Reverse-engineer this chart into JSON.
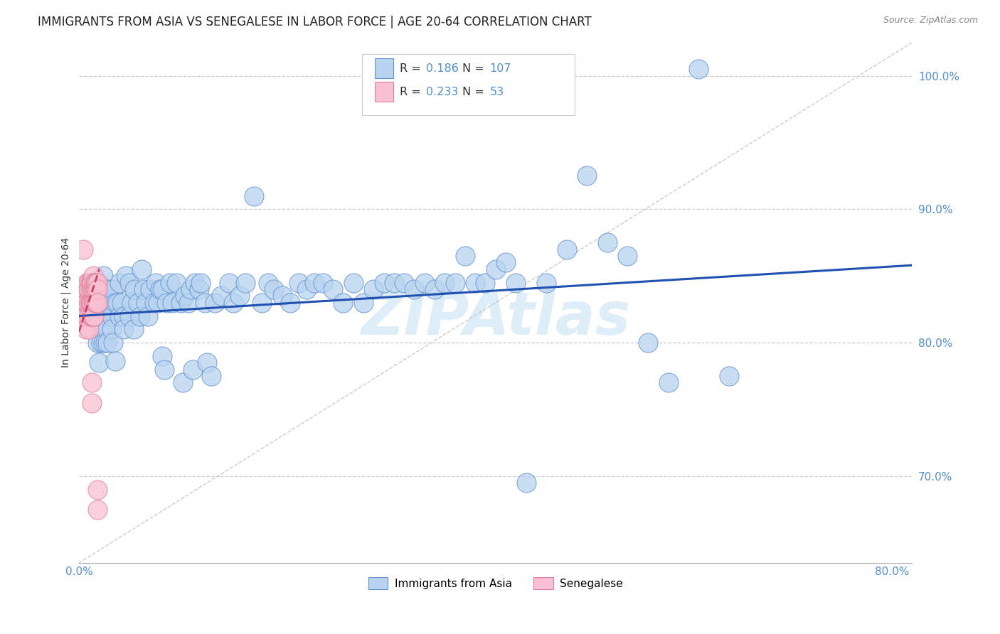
{
  "title": "IMMIGRANTS FROM ASIA VS SENEGALESE IN LABOR FORCE | AGE 20-64 CORRELATION CHART",
  "source_text": "Source: ZipAtlas.com",
  "ylabel": "In Labor Force | Age 20-64",
  "xlim": [
    0.0,
    0.82
  ],
  "ylim": [
    0.635,
    1.025
  ],
  "yticks": [
    0.7,
    0.8,
    0.9,
    1.0
  ],
  "ytick_labels": [
    "70.0%",
    "80.0%",
    "90.0%",
    "100.0%"
  ],
  "xticks": [
    0.0,
    0.1,
    0.2,
    0.3,
    0.4,
    0.5,
    0.6,
    0.7,
    0.8
  ],
  "xtick_labels": [
    "0.0%",
    "",
    "",
    "",
    "",
    "",
    "",
    "",
    "80.0%"
  ],
  "legend_blue_r": "0.186",
  "legend_blue_n": "107",
  "legend_pink_r": "0.233",
  "legend_pink_n": "53",
  "blue_fill": "#b8d4f0",
  "pink_fill": "#f8c0d0",
  "blue_edge": "#6090d0",
  "pink_edge": "#e080a0",
  "blue_line_color": "#2050b0",
  "pink_line_color": "#d04060",
  "watermark": "ZIPAtlas",
  "tick_label_color": "#5090cc",
  "title_fontsize": 12,
  "blue_scatter": [
    [
      0.018,
      0.82
    ],
    [
      0.018,
      0.8
    ],
    [
      0.02,
      0.785
    ],
    [
      0.02,
      0.84
    ],
    [
      0.02,
      0.83
    ],
    [
      0.022,
      0.82
    ],
    [
      0.022,
      0.81
    ],
    [
      0.022,
      0.84
    ],
    [
      0.022,
      0.8
    ],
    [
      0.024,
      0.8
    ],
    [
      0.024,
      0.85
    ],
    [
      0.025,
      0.82
    ],
    [
      0.025,
      0.81
    ],
    [
      0.026,
      0.83
    ],
    [
      0.026,
      0.8
    ],
    [
      0.026,
      0.84
    ],
    [
      0.028,
      0.83
    ],
    [
      0.028,
      0.82
    ],
    [
      0.028,
      0.81
    ],
    [
      0.028,
      0.84
    ],
    [
      0.028,
      0.8
    ],
    [
      0.03,
      0.83
    ],
    [
      0.032,
      0.82
    ],
    [
      0.032,
      0.81
    ],
    [
      0.034,
      0.84
    ],
    [
      0.034,
      0.8
    ],
    [
      0.036,
      0.83
    ],
    [
      0.036,
      0.786
    ],
    [
      0.038,
      0.83
    ],
    [
      0.04,
      0.82
    ],
    [
      0.04,
      0.845
    ],
    [
      0.042,
      0.83
    ],
    [
      0.044,
      0.82
    ],
    [
      0.044,
      0.81
    ],
    [
      0.046,
      0.85
    ],
    [
      0.05,
      0.82
    ],
    [
      0.05,
      0.845
    ],
    [
      0.052,
      0.83
    ],
    [
      0.054,
      0.81
    ],
    [
      0.055,
      0.84
    ],
    [
      0.058,
      0.83
    ],
    [
      0.06,
      0.82
    ],
    [
      0.062,
      0.855
    ],
    [
      0.064,
      0.84
    ],
    [
      0.066,
      0.83
    ],
    [
      0.068,
      0.82
    ],
    [
      0.07,
      0.84
    ],
    [
      0.074,
      0.83
    ],
    [
      0.076,
      0.845
    ],
    [
      0.078,
      0.83
    ],
    [
      0.08,
      0.84
    ],
    [
      0.082,
      0.84
    ],
    [
      0.082,
      0.79
    ],
    [
      0.084,
      0.78
    ],
    [
      0.086,
      0.83
    ],
    [
      0.09,
      0.845
    ],
    [
      0.092,
      0.83
    ],
    [
      0.096,
      0.845
    ],
    [
      0.1,
      0.83
    ],
    [
      0.102,
      0.77
    ],
    [
      0.104,
      0.835
    ],
    [
      0.108,
      0.83
    ],
    [
      0.11,
      0.84
    ],
    [
      0.112,
      0.78
    ],
    [
      0.114,
      0.845
    ],
    [
      0.118,
      0.84
    ],
    [
      0.12,
      0.845
    ],
    [
      0.124,
      0.83
    ],
    [
      0.126,
      0.785
    ],
    [
      0.13,
      0.775
    ],
    [
      0.134,
      0.83
    ],
    [
      0.14,
      0.835
    ],
    [
      0.148,
      0.845
    ],
    [
      0.152,
      0.83
    ],
    [
      0.158,
      0.835
    ],
    [
      0.164,
      0.845
    ],
    [
      0.172,
      0.91
    ],
    [
      0.18,
      0.83
    ],
    [
      0.186,
      0.845
    ],
    [
      0.192,
      0.84
    ],
    [
      0.2,
      0.835
    ],
    [
      0.208,
      0.83
    ],
    [
      0.216,
      0.845
    ],
    [
      0.224,
      0.84
    ],
    [
      0.232,
      0.845
    ],
    [
      0.24,
      0.845
    ],
    [
      0.25,
      0.84
    ],
    [
      0.26,
      0.83
    ],
    [
      0.27,
      0.845
    ],
    [
      0.28,
      0.83
    ],
    [
      0.29,
      0.84
    ],
    [
      0.3,
      0.845
    ],
    [
      0.31,
      0.845
    ],
    [
      0.32,
      0.845
    ],
    [
      0.33,
      0.84
    ],
    [
      0.34,
      0.845
    ],
    [
      0.35,
      0.84
    ],
    [
      0.36,
      0.845
    ],
    [
      0.37,
      0.845
    ],
    [
      0.38,
      0.865
    ],
    [
      0.39,
      0.845
    ],
    [
      0.4,
      0.845
    ],
    [
      0.41,
      0.855
    ],
    [
      0.42,
      0.86
    ],
    [
      0.43,
      0.845
    ],
    [
      0.44,
      0.695
    ],
    [
      0.46,
      0.845
    ],
    [
      0.48,
      0.87
    ],
    [
      0.5,
      0.925
    ],
    [
      0.52,
      0.875
    ],
    [
      0.54,
      0.865
    ],
    [
      0.56,
      0.8
    ],
    [
      0.58,
      0.77
    ],
    [
      0.61,
      1.005
    ],
    [
      0.64,
      0.775
    ]
  ],
  "pink_scatter": [
    [
      0.004,
      0.87
    ],
    [
      0.005,
      0.83
    ],
    [
      0.006,
      0.84
    ],
    [
      0.006,
      0.82
    ],
    [
      0.006,
      0.84
    ],
    [
      0.007,
      0.81
    ],
    [
      0.007,
      0.84
    ],
    [
      0.007,
      0.83
    ],
    [
      0.008,
      0.82
    ],
    [
      0.008,
      0.845
    ],
    [
      0.008,
      0.83
    ],
    [
      0.008,
      0.82
    ],
    [
      0.009,
      0.84
    ],
    [
      0.009,
      0.845
    ],
    [
      0.01,
      0.84
    ],
    [
      0.01,
      0.83
    ],
    [
      0.01,
      0.82
    ],
    [
      0.01,
      0.83
    ],
    [
      0.01,
      0.82
    ],
    [
      0.01,
      0.81
    ],
    [
      0.011,
      0.845
    ],
    [
      0.011,
      0.83
    ],
    [
      0.012,
      0.84
    ],
    [
      0.012,
      0.82
    ],
    [
      0.012,
      0.845
    ],
    [
      0.012,
      0.83
    ],
    [
      0.013,
      0.82
    ],
    [
      0.013,
      0.77
    ],
    [
      0.013,
      0.755
    ],
    [
      0.013,
      0.845
    ],
    [
      0.013,
      0.84
    ],
    [
      0.013,
      0.83
    ],
    [
      0.014,
      0.85
    ],
    [
      0.014,
      0.84
    ],
    [
      0.014,
      0.83
    ],
    [
      0.014,
      0.82
    ],
    [
      0.015,
      0.84
    ],
    [
      0.015,
      0.83
    ],
    [
      0.015,
      0.845
    ],
    [
      0.015,
      0.83
    ],
    [
      0.015,
      0.82
    ],
    [
      0.016,
      0.845
    ],
    [
      0.016,
      0.84
    ],
    [
      0.016,
      0.83
    ],
    [
      0.017,
      0.845
    ],
    [
      0.017,
      0.84
    ],
    [
      0.017,
      0.845
    ],
    [
      0.017,
      0.83
    ],
    [
      0.018,
      0.845
    ],
    [
      0.018,
      0.84
    ],
    [
      0.018,
      0.83
    ],
    [
      0.018,
      0.69
    ],
    [
      0.018,
      0.675
    ]
  ],
  "blue_trend_x": [
    0.0,
    0.82
  ],
  "blue_trend_y": [
    0.82,
    0.858
  ],
  "pink_trend_x": [
    0.0,
    0.02
  ],
  "pink_trend_y": [
    0.808,
    0.855
  ],
  "diag_line_x": [
    0.0,
    0.82
  ],
  "diag_line_y": [
    0.635,
    1.025
  ]
}
